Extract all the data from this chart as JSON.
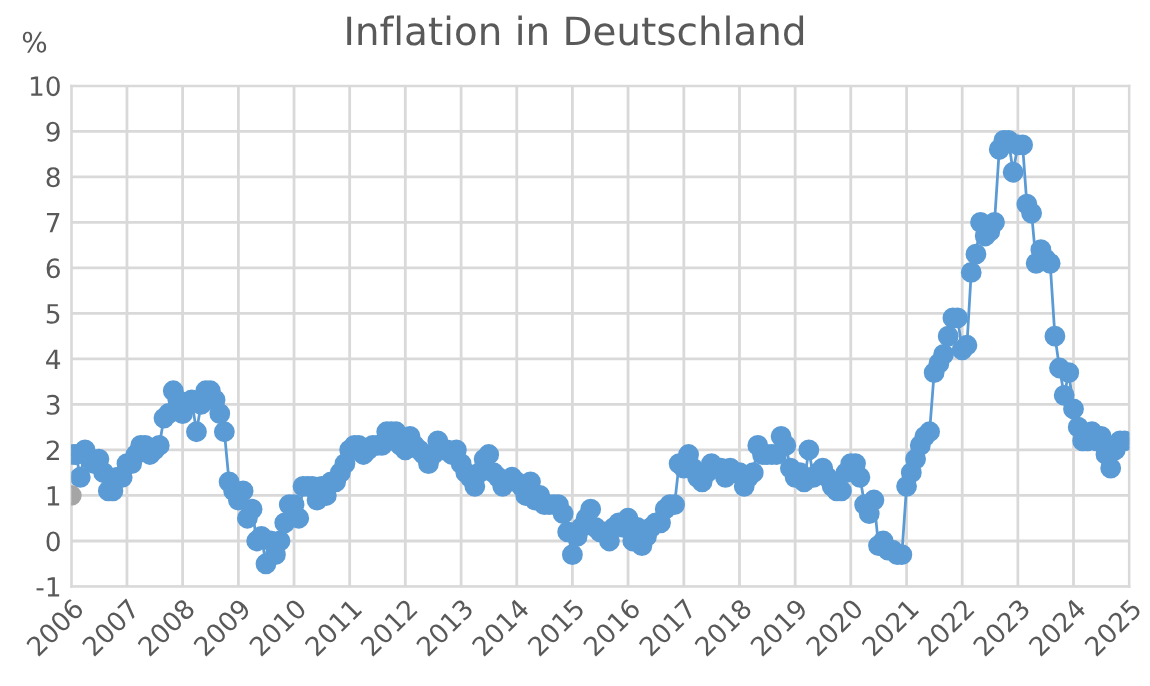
{
  "chart_data": {
    "type": "line",
    "title": "Inflation in Deutschland",
    "ylabel": "%",
    "x": [
      "2006-01",
      "2006-02",
      "2006-03",
      "2006-04",
      "2006-05",
      "2006-06",
      "2006-07",
      "2006-08",
      "2006-09",
      "2006-10",
      "2006-11",
      "2006-12",
      "2007-01",
      "2007-02",
      "2007-03",
      "2007-04",
      "2007-05",
      "2007-06",
      "2007-07",
      "2007-08",
      "2007-09",
      "2007-10",
      "2007-11",
      "2007-12",
      "2008-01",
      "2008-02",
      "2008-03",
      "2008-04",
      "2008-05",
      "2008-06",
      "2008-07",
      "2008-08",
      "2008-09",
      "2008-10",
      "2008-11",
      "2008-12",
      "2009-01",
      "2009-02",
      "2009-03",
      "2009-04",
      "2009-05",
      "2009-06",
      "2009-07",
      "2009-08",
      "2009-09",
      "2009-10",
      "2009-11",
      "2009-12",
      "2010-01",
      "2010-02",
      "2010-03",
      "2010-04",
      "2010-05",
      "2010-06",
      "2010-07",
      "2010-08",
      "2010-09",
      "2010-10",
      "2010-11",
      "2010-12",
      "2011-01",
      "2011-02",
      "2011-03",
      "2011-04",
      "2011-05",
      "2011-06",
      "2011-07",
      "2011-08",
      "2011-09",
      "2011-10",
      "2011-11",
      "2011-12",
      "2012-01",
      "2012-02",
      "2012-03",
      "2012-04",
      "2012-05",
      "2012-06",
      "2012-07",
      "2012-08",
      "2012-09",
      "2012-10",
      "2012-11",
      "2012-12",
      "2013-01",
      "2013-02",
      "2013-03",
      "2013-04",
      "2013-05",
      "2013-06",
      "2013-07",
      "2013-08",
      "2013-09",
      "2013-10",
      "2013-11",
      "2013-12",
      "2014-01",
      "2014-02",
      "2014-03",
      "2014-04",
      "2014-05",
      "2014-06",
      "2014-07",
      "2014-08",
      "2014-09",
      "2014-10",
      "2014-11",
      "2014-12",
      "2015-01",
      "2015-02",
      "2015-03",
      "2015-04",
      "2015-05",
      "2015-06",
      "2015-07",
      "2015-08",
      "2015-09",
      "2015-10",
      "2015-11",
      "2015-12",
      "2016-01",
      "2016-02",
      "2016-03",
      "2016-04",
      "2016-05",
      "2016-06",
      "2016-07",
      "2016-08",
      "2016-09",
      "2016-10",
      "2016-11",
      "2016-12",
      "2017-01",
      "2017-02",
      "2017-03",
      "2017-04",
      "2017-05",
      "2017-06",
      "2017-07",
      "2017-08",
      "2017-09",
      "2017-10",
      "2017-11",
      "2017-12",
      "2018-01",
      "2018-02",
      "2018-03",
      "2018-04",
      "2018-05",
      "2018-06",
      "2018-07",
      "2018-08",
      "2018-09",
      "2018-10",
      "2018-11",
      "2018-12",
      "2019-01",
      "2019-02",
      "2019-03",
      "2019-04",
      "2019-05",
      "2019-06",
      "2019-07",
      "2019-08",
      "2019-09",
      "2019-10",
      "2019-11",
      "2019-12",
      "2020-01",
      "2020-02",
      "2020-03",
      "2020-04",
      "2020-05",
      "2020-06",
      "2020-07",
      "2020-08",
      "2020-09",
      "2020-10",
      "2020-11",
      "2020-12",
      "2021-01",
      "2021-02",
      "2021-03",
      "2021-04",
      "2021-05",
      "2021-06",
      "2021-07",
      "2021-08",
      "2021-09",
      "2021-10",
      "2021-11",
      "2021-12",
      "2022-01",
      "2022-02",
      "2022-03",
      "2022-04",
      "2022-05",
      "2022-06",
      "2022-07",
      "2022-08",
      "2022-09",
      "2022-10",
      "2022-11",
      "2022-12",
      "2023-01",
      "2023-02",
      "2023-03",
      "2023-04",
      "2023-05",
      "2023-06",
      "2023-07",
      "2023-08",
      "2023-09",
      "2023-10",
      "2023-11",
      "2023-12",
      "2024-01",
      "2024-02",
      "2024-03",
      "2024-04",
      "2024-05",
      "2024-06",
      "2024-07",
      "2024-08",
      "2024-09",
      "2024-10",
      "2024-11",
      "2024-12"
    ],
    "series": [
      {
        "color": "#5b9bd5",
        "values": [
          1.9,
          1.9,
          1.4,
          2.0,
          1.8,
          1.7,
          1.8,
          1.5,
          1.1,
          1.1,
          1.4,
          1.4,
          1.7,
          1.7,
          1.9,
          2.1,
          2.1,
          1.9,
          2.0,
          2.1,
          2.7,
          2.8,
          3.3,
          3.1,
          2.8,
          3.0,
          3.1,
          2.4,
          3.0,
          3.3,
          3.3,
          3.1,
          2.8,
          2.4,
          1.3,
          1.1,
          0.9,
          1.1,
          0.5,
          0.7,
          0.0,
          0.1,
          -0.5,
          0.0,
          -0.3,
          0.0,
          0.4,
          0.8,
          0.8,
          0.5,
          1.2,
          1.2,
          1.2,
          0.9,
          1.2,
          1.0,
          1.3,
          1.3,
          1.5,
          1.7,
          2.0,
          2.1,
          2.1,
          1.9,
          2.0,
          2.1,
          2.1,
          2.1,
          2.4,
          2.4,
          2.4,
          2.1,
          2.0,
          2.3,
          2.1,
          2.0,
          1.9,
          1.7,
          1.9,
          2.2,
          2.0,
          2.0,
          1.9,
          2.0,
          1.7,
          1.5,
          1.4,
          1.2,
          1.5,
          1.8,
          1.9,
          1.5,
          1.4,
          1.2,
          1.3,
          1.4,
          1.3,
          1.2,
          1.0,
          1.3,
          0.9,
          1.0,
          0.8,
          0.8,
          0.8,
          0.8,
          0.6,
          0.2,
          -0.3,
          0.1,
          0.3,
          0.5,
          0.7,
          0.3,
          0.2,
          0.2,
          0.0,
          0.3,
          0.4,
          0.3,
          0.5,
          0.0,
          0.3,
          -0.1,
          0.1,
          0.3,
          0.4,
          0.4,
          0.7,
          0.8,
          0.8,
          1.7,
          1.6,
          1.9,
          1.6,
          1.4,
          1.3,
          1.5,
          1.7,
          1.6,
          1.6,
          1.4,
          1.6,
          1.5,
          1.5,
          1.2,
          1.4,
          1.5,
          2.1,
          1.9,
          1.9,
          1.9,
          1.9,
          2.3,
          2.1,
          1.6,
          1.4,
          1.5,
          1.3,
          2.0,
          1.4,
          1.5,
          1.6,
          1.4,
          1.2,
          1.1,
          1.1,
          1.5,
          1.7,
          1.7,
          1.4,
          0.8,
          0.6,
          0.9,
          -0.1,
          0.0,
          -0.2,
          -0.2,
          -0.3,
          -0.3,
          1.2,
          1.5,
          1.8,
          2.1,
          2.3,
          2.4,
          3.7,
          3.9,
          4.1,
          4.5,
          4.9,
          4.9,
          4.2,
          4.3,
          5.9,
          6.3,
          7.0,
          6.7,
          6.8,
          7.0,
          8.6,
          8.8,
          8.8,
          8.1,
          8.7,
          8.7,
          7.4,
          7.2,
          6.1,
          6.4,
          6.2,
          6.1,
          4.5,
          3.8,
          3.2,
          3.7,
          2.9,
          2.5,
          2.2,
          2.2,
          2.4,
          2.2,
          2.3,
          1.9,
          1.6,
          2.0,
          2.2,
          2.2
        ]
      },
      {
        "type": "scatter",
        "color": "#a5a5a5",
        "x": [
          "2006-01"
        ],
        "values": [
          1.0
        ]
      }
    ],
    "xlim": [
      "2006",
      "2025"
    ],
    "xticks": [
      "2006",
      "2007",
      "2008",
      "2009",
      "2010",
      "2011",
      "2012",
      "2013",
      "2014",
      "2015",
      "2016",
      "2017",
      "2018",
      "2019",
      "2020",
      "2021",
      "2022",
      "2023",
      "2024",
      "2025"
    ],
    "ylim": [
      -1,
      10
    ],
    "yticks": [
      -1,
      0,
      1,
      2,
      3,
      4,
      5,
      6,
      7,
      8,
      9,
      10
    ],
    "grid": true,
    "marker": "circle",
    "line_style": "solid"
  }
}
